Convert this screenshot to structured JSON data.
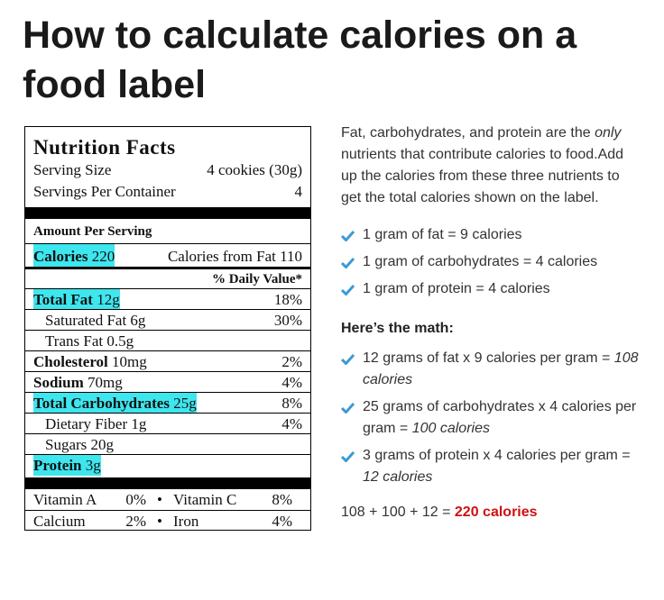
{
  "title": "How to calculate calories on a food label",
  "label": {
    "heading": "Nutrition Facts",
    "serving_size": {
      "label": "Serving Size",
      "value": "4 cookies (30g)"
    },
    "servings_per_container": {
      "label": "Servings Per Container",
      "value": "4"
    },
    "amount_per_serving": "Amount Per Serving",
    "calories": {
      "label": "Calories",
      "value": "220",
      "from_fat_label": "Calories from Fat",
      "from_fat_value": "110"
    },
    "daily_value_header": "% Daily Value*",
    "rows": [
      {
        "name": "Total Fat",
        "amount": "12g",
        "dv": "18%"
      },
      {
        "name": "Saturated Fat",
        "amount": "6g",
        "dv": "30%"
      },
      {
        "name": "Trans Fat",
        "amount": "0.5g"
      },
      {
        "name": "Cholesterol",
        "amount": "10mg",
        "dv": "2%"
      },
      {
        "name": "Sodium",
        "amount": "70mg",
        "dv": "4%"
      },
      {
        "name": "Total Carbohydrates",
        "amount": "25g",
        "dv": "8%"
      },
      {
        "name": "Dietary Fiber",
        "amount": "1g",
        "dv": "4%"
      },
      {
        "name": "Sugars",
        "amount": "20g"
      },
      {
        "name": "Protein",
        "amount": "3g"
      }
    ],
    "vitamins": [
      [
        {
          "name": "Vitamin A",
          "dv": "0%"
        },
        {
          "name": "Vitamin C",
          "dv": "8%"
        }
      ],
      [
        {
          "name": "Calcium",
          "dv": "2%"
        },
        {
          "name": "Iron",
          "dv": "4%"
        }
      ]
    ]
  },
  "intro": {
    "before": "Fat, carbohydrates, and protein are the",
    "emphasis": "only",
    "after": "nutrients that contribute calories to food.Add up the calories from these three nutrients to get the total calories shown on the label."
  },
  "facts": [
    "1 gram of fat = 9 calories",
    "1 gram of carbohydrates = 4 calories",
    "1 gram of protein = 4 calories"
  ],
  "math_heading": "Here’s the math:",
  "math": [
    {
      "text": "12 grams of fat x 9 calories per gram =",
      "result": "108 calories"
    },
    {
      "text": "25 grams of carbohydrates x 4 calories per gram =",
      "result": "100 calories"
    },
    {
      "text": "3 grams of protein x 4 calories per gram =",
      "result": "12 calories"
    }
  ],
  "total": {
    "sum": "108 + 100 + 12 =",
    "result": "220 calories"
  }
}
